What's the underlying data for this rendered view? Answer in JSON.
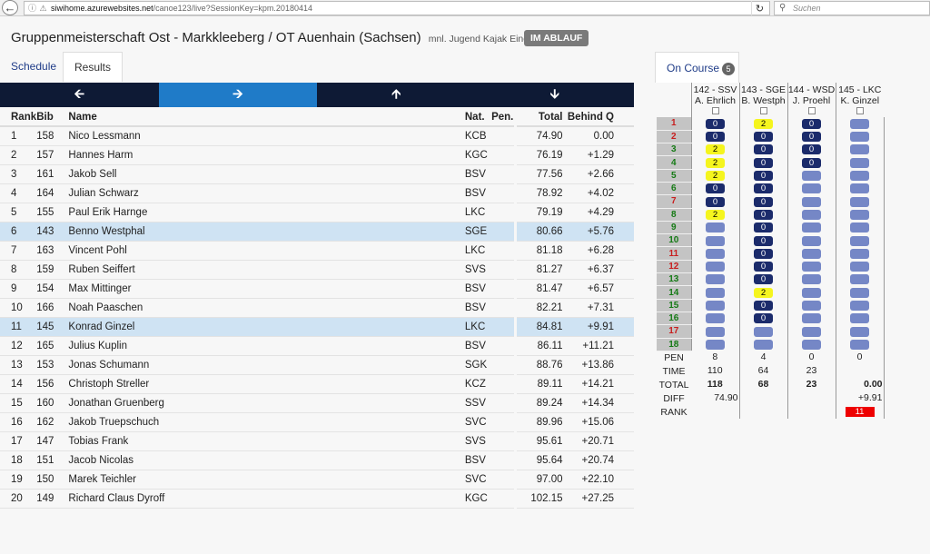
{
  "browser": {
    "url_host": "siwihome.azurewebsites.net",
    "url_path": "/canoe123/live?SessionKey=kpm.20180414",
    "search_placeholder": "Suchen"
  },
  "header": {
    "title": "Gruppenmeisterschaft Ost - Markkleeberg / OT Auenhain (Sachsen)",
    "subtitle": "mnl. Jugend Kajak Einer 2nd Run",
    "status": "IM ABLAUF"
  },
  "tabs": {
    "schedule": "Schedule",
    "results": "Results"
  },
  "results": {
    "headers": {
      "rank": "Rank",
      "bib": "Bib",
      "name": "Name",
      "nat": "Nat.",
      "pen": "Pen.",
      "total": "Total",
      "behind": "Behind Q"
    },
    "rows": [
      {
        "rank": "1",
        "bib": "158",
        "name": "Nico Lessmann",
        "nat": "KCB",
        "pen": "",
        "total": "74.90",
        "behind": "0.00"
      },
      {
        "rank": "2",
        "bib": "157",
        "name": "Hannes Harm",
        "nat": "KGC",
        "pen": "",
        "total": "76.19",
        "behind": "+1.29"
      },
      {
        "rank": "3",
        "bib": "161",
        "name": "Jakob Sell",
        "nat": "BSV",
        "pen": "",
        "total": "77.56",
        "behind": "+2.66"
      },
      {
        "rank": "4",
        "bib": "164",
        "name": "Julian Schwarz",
        "nat": "BSV",
        "pen": "",
        "total": "78.92",
        "behind": "+4.02"
      },
      {
        "rank": "5",
        "bib": "155",
        "name": "Paul Erik Harnge",
        "nat": "LKC",
        "pen": "",
        "total": "79.19",
        "behind": "+4.29"
      },
      {
        "rank": "6",
        "bib": "143",
        "name": "Benno Westphal",
        "nat": "SGE",
        "pen": "",
        "total": "80.66",
        "behind": "+5.76"
      },
      {
        "rank": "7",
        "bib": "163",
        "name": "Vincent Pohl",
        "nat": "LKC",
        "pen": "",
        "total": "81.18",
        "behind": "+6.28"
      },
      {
        "rank": "8",
        "bib": "159",
        "name": "Ruben Seiffert",
        "nat": "SVS",
        "pen": "",
        "total": "81.27",
        "behind": "+6.37"
      },
      {
        "rank": "9",
        "bib": "154",
        "name": "Max Mittinger",
        "nat": "BSV",
        "pen": "",
        "total": "81.47",
        "behind": "+6.57"
      },
      {
        "rank": "10",
        "bib": "166",
        "name": "Noah Paaschen",
        "nat": "BSV",
        "pen": "",
        "total": "82.21",
        "behind": "+7.31"
      },
      {
        "rank": "11",
        "bib": "145",
        "name": "Konrad Ginzel",
        "nat": "LKC",
        "pen": "",
        "total": "84.81",
        "behind": "+9.91"
      },
      {
        "rank": "12",
        "bib": "165",
        "name": "Julius Kuplin",
        "nat": "BSV",
        "pen": "",
        "total": "86.11",
        "behind": "+11.21"
      },
      {
        "rank": "13",
        "bib": "153",
        "name": "Jonas Schumann",
        "nat": "SGK",
        "pen": "",
        "total": "88.76",
        "behind": "+13.86"
      },
      {
        "rank": "14",
        "bib": "156",
        "name": "Christoph Streller",
        "nat": "KCZ",
        "pen": "",
        "total": "89.11",
        "behind": "+14.21"
      },
      {
        "rank": "15",
        "bib": "160",
        "name": "Jonathan Gruenberg",
        "nat": "SSV",
        "pen": "",
        "total": "89.24",
        "behind": "+14.34"
      },
      {
        "rank": "16",
        "bib": "162",
        "name": "Jakob Truepschuch",
        "nat": "SVC",
        "pen": "",
        "total": "89.96",
        "behind": "+15.06"
      },
      {
        "rank": "17",
        "bib": "147",
        "name": "Tobias Frank",
        "nat": "SVS",
        "pen": "",
        "total": "95.61",
        "behind": "+20.71"
      },
      {
        "rank": "18",
        "bib": "151",
        "name": "Jacob Nicolas",
        "nat": "BSV",
        "pen": "",
        "total": "95.64",
        "behind": "+20.74"
      },
      {
        "rank": "19",
        "bib": "150",
        "name": "Marek Teichler",
        "nat": "SVC",
        "pen": "",
        "total": "97.00",
        "behind": "+22.10"
      },
      {
        "rank": "20",
        "bib": "149",
        "name": "Richard Claus Dyroff",
        "nat": "KGC",
        "pen": "",
        "total": "102.15",
        "behind": "+27.25"
      }
    ],
    "highlight_rows": [
      "6",
      "11"
    ]
  },
  "on_course": {
    "tab_label": "On Course",
    "count": "5",
    "athletes": [
      {
        "head": "142 - SSV",
        "name": "A. Ehrlich"
      },
      {
        "head": "143 - SGE",
        "name": "B. Westph"
      },
      {
        "head": "144 - WSD",
        "name": "J. Proehl"
      },
      {
        "head": "145 - LKC",
        "name": "K. Ginzel"
      }
    ],
    "gates": [
      {
        "no": "1",
        "dir": "down",
        "cells": [
          "0",
          "2",
          "0",
          ""
        ]
      },
      {
        "no": "2",
        "dir": "down",
        "cells": [
          "0",
          "0",
          "0",
          ""
        ]
      },
      {
        "no": "3",
        "dir": "up",
        "cells": [
          "2",
          "0",
          "0",
          ""
        ]
      },
      {
        "no": "4",
        "dir": "up",
        "cells": [
          "2",
          "0",
          "0",
          ""
        ]
      },
      {
        "no": "5",
        "dir": "up",
        "cells": [
          "2",
          "0",
          "",
          ""
        ]
      },
      {
        "no": "6",
        "dir": "up",
        "cells": [
          "0",
          "0",
          "",
          ""
        ]
      },
      {
        "no": "7",
        "dir": "down",
        "cells": [
          "0",
          "0",
          "",
          ""
        ]
      },
      {
        "no": "8",
        "dir": "up",
        "cells": [
          "2",
          "0",
          "",
          ""
        ]
      },
      {
        "no": "9",
        "dir": "up",
        "cells": [
          "",
          "0",
          "",
          ""
        ]
      },
      {
        "no": "10",
        "dir": "up",
        "cells": [
          "",
          "0",
          "",
          ""
        ]
      },
      {
        "no": "11",
        "dir": "down",
        "cells": [
          "",
          "0",
          "",
          ""
        ]
      },
      {
        "no": "12",
        "dir": "down",
        "cells": [
          "",
          "0",
          "",
          ""
        ]
      },
      {
        "no": "13",
        "dir": "up",
        "cells": [
          "",
          "0",
          "",
          ""
        ]
      },
      {
        "no": "14",
        "dir": "up",
        "cells": [
          "",
          "2",
          "",
          ""
        ]
      },
      {
        "no": "15",
        "dir": "up",
        "cells": [
          "",
          "0",
          "",
          ""
        ]
      },
      {
        "no": "16",
        "dir": "up",
        "cells": [
          "",
          "0",
          "",
          ""
        ]
      },
      {
        "no": "17",
        "dir": "down",
        "cells": [
          "",
          "",
          "",
          ""
        ]
      },
      {
        "no": "18",
        "dir": "up",
        "cells": [
          "",
          "",
          "",
          ""
        ]
      }
    ],
    "summary_labels": {
      "pen": "PEN",
      "time": "TIME",
      "total": "TOTAL",
      "diff": "DIFF",
      "rank": "RANK"
    },
    "summary": [
      {
        "pen": "8",
        "time": "110",
        "total": "118",
        "diff": "74.90",
        "rank": ""
      },
      {
        "pen": "4",
        "time": "64",
        "total": "68",
        "diff": "",
        "rank": ""
      },
      {
        "pen": "0",
        "time": "23",
        "total": "23",
        "diff": "",
        "rank": ""
      },
      {
        "pen": "0",
        "time": "",
        "total": "0.00",
        "diff": "+9.91",
        "rank": "11"
      }
    ],
    "colors": {
      "zero": "#1b2b6b",
      "two": "#f5f51e",
      "empty": "#7587c6",
      "rank": "#ee0000"
    }
  }
}
